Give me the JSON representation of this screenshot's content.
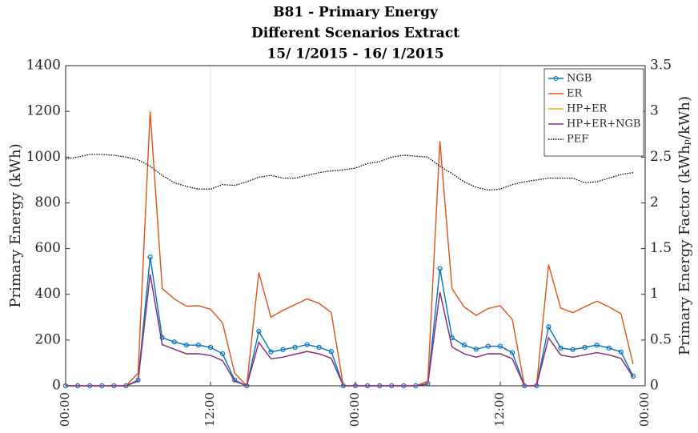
{
  "chart_data": {
    "type": "line",
    "title": [
      "B81 - Primary Energy",
      "Different Scenarios Extract",
      "15/ 1/2015 - 16/ 1/2015"
    ],
    "ylabel": "Primary Energy (kWh)",
    "y2label": "Primary Energy Factor (kWhₚ/kWh)",
    "x": [
      0,
      1,
      2,
      3,
      4,
      5,
      6,
      7,
      8,
      9,
      10,
      11,
      12,
      13,
      14,
      15,
      16,
      17,
      18,
      19,
      20,
      21,
      22,
      23,
      24,
      25,
      26,
      27,
      28,
      29,
      30,
      31,
      32,
      33,
      34,
      35,
      36,
      37,
      38,
      39,
      40,
      41,
      42,
      43,
      44,
      45,
      46,
      47
    ],
    "xlim": [
      0,
      48
    ],
    "xticks": [
      {
        "value": 0,
        "label": "00:00"
      },
      {
        "value": 12,
        "label": "12:00"
      },
      {
        "value": 24,
        "label": "00:00"
      },
      {
        "value": 36,
        "label": "12:00"
      },
      {
        "value": 48,
        "label": "00:00"
      }
    ],
    "ylim": [
      0,
      1400
    ],
    "yticks": [
      0,
      200,
      400,
      600,
      800,
      1000,
      1200,
      1400
    ],
    "y2lim": [
      0,
      3.5
    ],
    "y2ticks": [
      0,
      0.5,
      1,
      1.5,
      2,
      2.5,
      3,
      3.5
    ],
    "xgrid": true,
    "legend": "top-right",
    "series": [
      {
        "name": "NGB",
        "color": "#0072BD",
        "marker": "o",
        "values": [
          0,
          0,
          0,
          0,
          0,
          0,
          25,
          563,
          210,
          192,
          178,
          178,
          168,
          140,
          25,
          0,
          238,
          148,
          158,
          168,
          180,
          168,
          150,
          0,
          0,
          0,
          0,
          0,
          0,
          0,
          10,
          513,
          210,
          178,
          160,
          173,
          173,
          145,
          0,
          0,
          258,
          165,
          158,
          168,
          178,
          165,
          148,
          42
        ]
      },
      {
        "name": "ER",
        "color": "#D95319",
        "values": [
          0,
          0,
          0,
          0,
          0,
          0,
          55,
          1200,
          425,
          380,
          348,
          350,
          335,
          275,
          55,
          0,
          495,
          300,
          330,
          355,
          380,
          360,
          320,
          0,
          0,
          0,
          0,
          0,
          0,
          0,
          20,
          1070,
          425,
          345,
          308,
          338,
          350,
          290,
          0,
          0,
          530,
          340,
          320,
          345,
          370,
          345,
          315,
          95
        ]
      },
      {
        "name": "HP+ER",
        "color": "#EDB120",
        "values": [
          0,
          0,
          0,
          0,
          0,
          0,
          20,
          488,
          180,
          160,
          140,
          140,
          133,
          110,
          20,
          0,
          190,
          118,
          125,
          138,
          150,
          140,
          120,
          0,
          0,
          0,
          0,
          0,
          0,
          0,
          8,
          410,
          170,
          140,
          125,
          140,
          140,
          118,
          0,
          0,
          210,
          135,
          125,
          135,
          145,
          135,
          120,
          38
        ]
      },
      {
        "name": "HP+ER+NGB",
        "color": "#7E2F8E",
        "values": [
          0,
          0,
          0,
          0,
          0,
          0,
          20,
          488,
          180,
          160,
          140,
          140,
          133,
          110,
          20,
          0,
          190,
          118,
          125,
          138,
          150,
          140,
          120,
          0,
          0,
          0,
          0,
          0,
          0,
          0,
          8,
          410,
          170,
          140,
          125,
          140,
          140,
          118,
          0,
          0,
          210,
          135,
          125,
          135,
          145,
          135,
          120,
          38
        ]
      },
      {
        "name": "PEF",
        "color": "#000000",
        "linestyle": "dotted",
        "axis": "y2",
        "values": [
          2.48,
          2.5,
          2.53,
          2.53,
          2.52,
          2.5,
          2.47,
          2.4,
          2.3,
          2.22,
          2.18,
          2.15,
          2.15,
          2.2,
          2.19,
          2.23,
          2.28,
          2.3,
          2.27,
          2.27,
          2.3,
          2.33,
          2.35,
          2.36,
          2.38,
          2.43,
          2.45,
          2.5,
          2.52,
          2.51,
          2.5,
          2.4,
          2.32,
          2.23,
          2.17,
          2.14,
          2.15,
          2.2,
          2.23,
          2.25,
          2.27,
          2.27,
          2.27,
          2.22,
          2.23,
          2.27,
          2.31,
          2.33
        ]
      }
    ]
  }
}
